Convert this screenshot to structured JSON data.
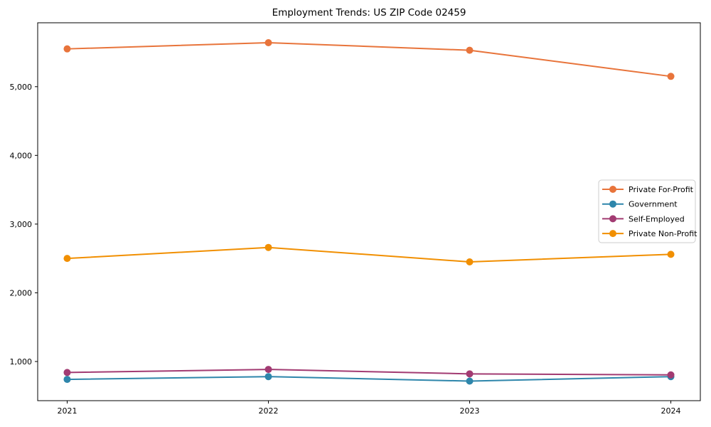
{
  "chart_data": {
    "type": "line",
    "title": "Employment Trends: US ZIP Code 02459",
    "x_categories": [
      "2021",
      "2022",
      "2023",
      "2024"
    ],
    "series": [
      {
        "name": "Private For-Profit",
        "color": "#E8743B",
        "values": [
          5550,
          5640,
          5530,
          5150
        ]
      },
      {
        "name": "Government",
        "color": "#2E86AB",
        "values": [
          740,
          780,
          715,
          780
        ]
      },
      {
        "name": "Self-Employed",
        "color": "#A23B72",
        "values": [
          840,
          885,
          820,
          805
        ]
      },
      {
        "name": "Private Non-Profit",
        "color": "#F18F01",
        "values": [
          2500,
          2660,
          2450,
          2560
        ]
      }
    ],
    "yticks": [
      1000,
      2000,
      3000,
      4000,
      5000
    ],
    "ytick_labels": [
      "1,000",
      "2,000",
      "3,000",
      "4,000",
      "5,000"
    ],
    "ylim": [
      430,
      5930
    ],
    "grid": false,
    "marker": "circle",
    "legend_position": "center-right",
    "axis_color": "#000000",
    "background_color": "#ffffff"
  }
}
